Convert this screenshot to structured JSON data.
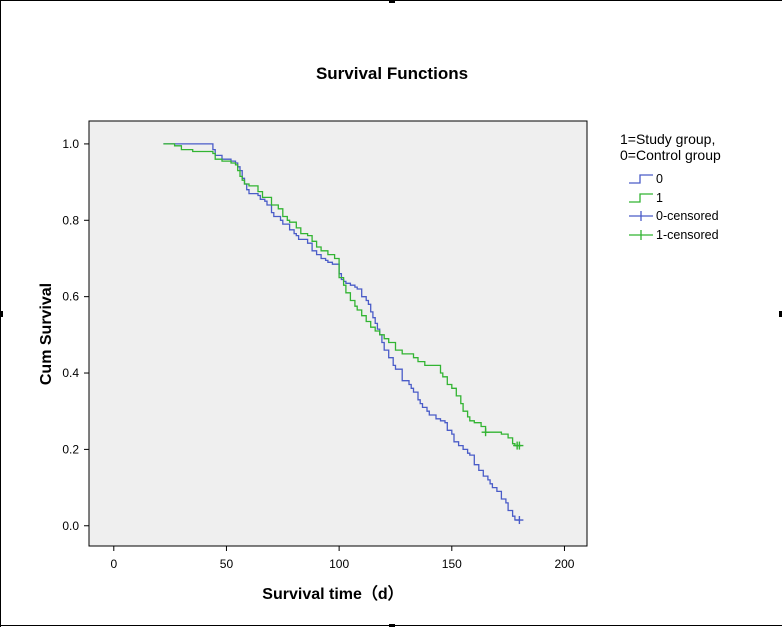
{
  "chart_data": {
    "type": "line",
    "step": true,
    "title": "Survival Functions",
    "xlabel": "Survival time（d）",
    "ylabel": "Cum Survival",
    "xlim": [
      -11,
      210
    ],
    "ylim": [
      -0.053,
      1.06
    ],
    "xticks": [
      0,
      50,
      100,
      150,
      200
    ],
    "yticks": [
      0.0,
      0.2,
      0.4,
      0.6,
      0.8,
      1.0
    ],
    "ytick_labels": [
      "0.0",
      "0.2",
      "0.4",
      "0.6",
      "0.8",
      "1.0"
    ],
    "legend": {
      "title": "1=Study group,\n0=Control group",
      "position": "right",
      "entries": [
        {
          "label": "0",
          "kind": "step-line",
          "series": "0"
        },
        {
          "label": "1",
          "kind": "step-line",
          "series": "1"
        },
        {
          "label": "0-censored",
          "kind": "censor-mark",
          "series": "0"
        },
        {
          "label": "1-censored",
          "kind": "censor-mark",
          "series": "1"
        }
      ]
    },
    "series": [
      {
        "name": "0",
        "color": "#4a5cc8",
        "x": [
          22,
          44,
          45,
          48,
          50,
          52,
          54,
          55,
          56,
          57,
          58,
          59,
          60,
          64,
          65,
          67,
          68,
          70,
          71,
          74,
          75,
          78,
          80,
          81,
          82,
          86,
          88,
          90,
          92,
          94,
          95,
          97,
          100,
          101,
          102,
          103,
          105,
          107,
          108,
          110,
          112,
          113,
          114,
          115,
          116,
          117,
          118,
          119,
          120,
          122,
          124,
          125,
          128,
          131,
          132,
          133,
          135,
          136,
          137,
          139,
          140,
          143,
          145,
          147,
          148,
          150,
          151,
          153,
          155,
          157,
          158,
          160,
          162,
          164,
          166,
          167,
          168,
          170,
          172,
          174,
          175,
          177,
          178,
          180
        ],
        "y": [
          1.0,
          0.985,
          0.97,
          0.96,
          0.96,
          0.955,
          0.95,
          0.94,
          0.93,
          0.91,
          0.895,
          0.88,
          0.87,
          0.865,
          0.855,
          0.85,
          0.84,
          0.82,
          0.81,
          0.8,
          0.79,
          0.775,
          0.765,
          0.76,
          0.75,
          0.74,
          0.72,
          0.71,
          0.7,
          0.695,
          0.69,
          0.685,
          0.66,
          0.645,
          0.64,
          0.635,
          0.63,
          0.625,
          0.62,
          0.6,
          0.59,
          0.58,
          0.56,
          0.545,
          0.53,
          0.515,
          0.5,
          0.48,
          0.46,
          0.44,
          0.42,
          0.41,
          0.38,
          0.37,
          0.36,
          0.35,
          0.33,
          0.32,
          0.31,
          0.3,
          0.29,
          0.28,
          0.275,
          0.27,
          0.25,
          0.24,
          0.22,
          0.21,
          0.2,
          0.19,
          0.185,
          0.16,
          0.145,
          0.13,
          0.12,
          0.11,
          0.1,
          0.09,
          0.07,
          0.06,
          0.04,
          0.025,
          0.015,
          0.015
        ],
        "censored": [
          {
            "x": 180,
            "y": 0.015
          }
        ]
      },
      {
        "name": "1",
        "color": "#32b432",
        "x": [
          22,
          27,
          30,
          35,
          44,
          45,
          48,
          50,
          52,
          54,
          55,
          56,
          57,
          58,
          60,
          64,
          66,
          70,
          73,
          75,
          77,
          78,
          81,
          83,
          86,
          88,
          90,
          92,
          95,
          98,
          100,
          102,
          103,
          105,
          107,
          108,
          110,
          112,
          114,
          116,
          118,
          120,
          122,
          125,
          128,
          133,
          135,
          138,
          145,
          146,
          148,
          150,
          152,
          154,
          155,
          157,
          158,
          160,
          163,
          165,
          168,
          170,
          172,
          175,
          177,
          178,
          180
        ],
        "y": [
          1.0,
          0.995,
          0.985,
          0.98,
          0.975,
          0.96,
          0.955,
          0.955,
          0.95,
          0.945,
          0.93,
          0.915,
          0.905,
          0.895,
          0.89,
          0.875,
          0.86,
          0.84,
          0.83,
          0.81,
          0.8,
          0.795,
          0.78,
          0.765,
          0.76,
          0.745,
          0.73,
          0.72,
          0.71,
          0.7,
          0.65,
          0.63,
          0.61,
          0.59,
          0.575,
          0.565,
          0.55,
          0.535,
          0.52,
          0.51,
          0.5,
          0.49,
          0.48,
          0.46,
          0.45,
          0.44,
          0.43,
          0.42,
          0.4,
          0.39,
          0.37,
          0.36,
          0.34,
          0.32,
          0.3,
          0.285,
          0.275,
          0.27,
          0.26,
          0.245,
          0.245,
          0.245,
          0.24,
          0.23,
          0.215,
          0.21,
          0.21
        ],
        "censored": [
          {
            "x": 165,
            "y": 0.245
          },
          {
            "x": 179,
            "y": 0.21
          },
          {
            "x": 180,
            "y": 0.21
          }
        ]
      }
    ]
  }
}
